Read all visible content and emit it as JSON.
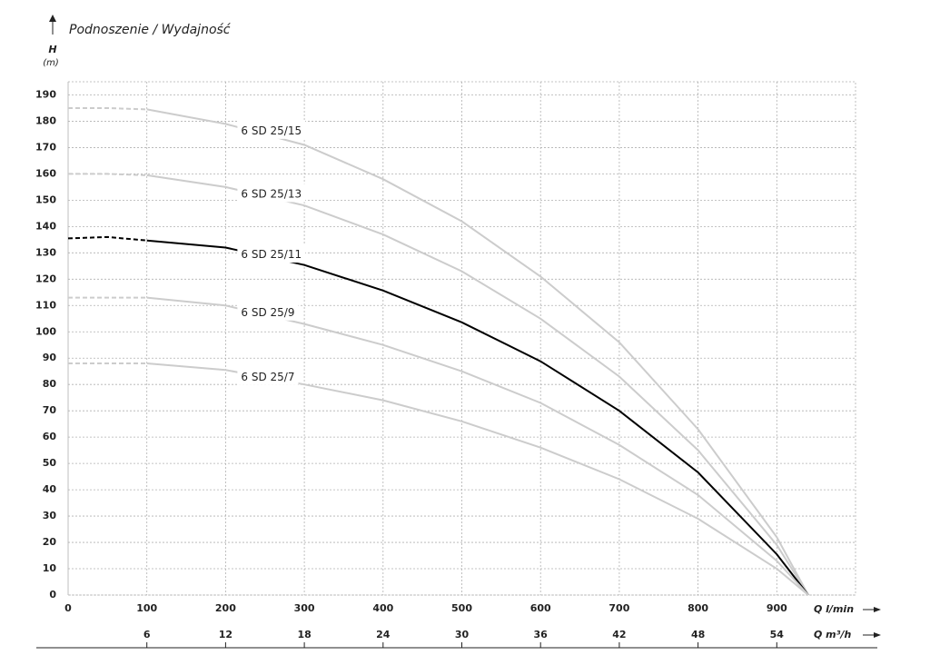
{
  "chart_data": {
    "type": "line",
    "title": "Podnoszenie / Wydajność",
    "ylabel": "H",
    "yunit": "(m)",
    "xlabel": "Q l/min",
    "x2label": "Q m³/h",
    "x": [
      0,
      50,
      100,
      200,
      300,
      400,
      500,
      600,
      700,
      800,
      900,
      940
    ],
    "series": [
      {
        "name": "6 SD 25/15",
        "color": "#cccccc",
        "values": [
          185,
          185,
          184.5,
          179,
          171,
          158,
          142,
          121,
          96,
          63,
          22,
          0
        ]
      },
      {
        "name": "6 SD 25/13",
        "color": "#cccccc",
        "values": [
          160,
          160,
          159.5,
          155,
          148,
          137,
          123,
          105,
          83,
          55,
          19,
          0
        ]
      },
      {
        "name": "6 SD 25/11",
        "color": "#000000",
        "values": [
          135.5,
          136,
          134.7,
          132,
          125.4,
          115.7,
          103.6,
          88.8,
          70,
          46.6,
          15.5,
          0
        ]
      },
      {
        "name": "6 SD 25/9",
        "color": "#cccccc",
        "values": [
          113,
          113,
          113,
          110,
          103,
          95,
          85,
          73,
          57,
          38,
          13,
          0
        ]
      },
      {
        "name": "6 SD 25/7",
        "color": "#cccccc",
        "values": [
          88,
          88,
          88,
          85.5,
          80,
          74,
          66,
          56,
          44,
          29,
          10,
          0
        ]
      }
    ],
    "dashed_until_x": 100,
    "xlim": [
      0,
      1000
    ],
    "xticks": [
      0,
      100,
      200,
      300,
      400,
      500,
      600,
      700,
      800,
      900
    ],
    "x2lim": [
      0,
      60
    ],
    "x2ticks": [
      6,
      12,
      18,
      24,
      30,
      36,
      42,
      48,
      54
    ],
    "ylim": [
      0,
      195
    ],
    "yticks": [
      0,
      10,
      20,
      30,
      40,
      50,
      60,
      70,
      80,
      90,
      100,
      110,
      120,
      130,
      140,
      150,
      160,
      170,
      180,
      190
    ],
    "grid": true
  }
}
